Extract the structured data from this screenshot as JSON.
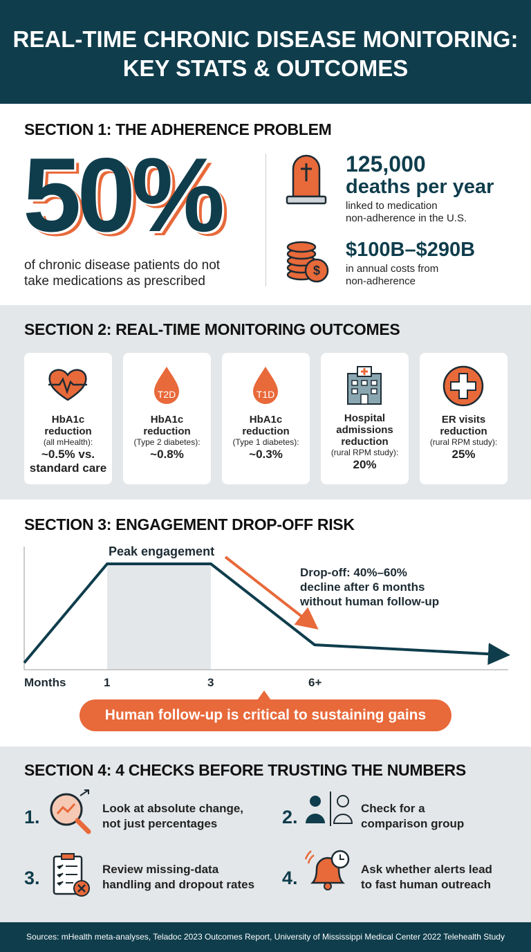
{
  "header": {
    "title_lines": [
      "REAL-TIME CHRONIC DISEASE MONITORING:",
      "KEY STATS & OUTCOMES"
    ]
  },
  "section1": {
    "heading": "SECTION 1: THE ADHERENCE PROBLEM",
    "big_stat": "50%",
    "big_stat_caption": [
      "of chronic disease patients do not",
      "take medications as prescribed"
    ],
    "stats": [
      {
        "value_lines": [
          "125,000",
          "deaths per year"
        ],
        "detail": [
          "linked to medication",
          "non-adherence in the U.S."
        ]
      },
      {
        "value_lines": [
          "$100B–$290B"
        ],
        "detail": [
          "in annual costs from",
          "non-adherence"
        ]
      }
    ]
  },
  "section2": {
    "heading": "SECTION 2: REAL-TIME MONITORING OUTCOMES",
    "cards": [
      {
        "title_lines": [
          "HbA1c",
          "reduction"
        ],
        "note": "(all mHealth):",
        "value_lines": [
          "~0.5% vs.",
          "standard care"
        ]
      },
      {
        "badge": "T2D",
        "title_lines": [
          "HbA1c",
          "reduction"
        ],
        "note": "(Type 2 diabetes):",
        "value_lines": [
          "~0.8%"
        ]
      },
      {
        "badge": "T1D",
        "title_lines": [
          "HbA1c",
          "reduction"
        ],
        "note": "(Type 1 diabetes):",
        "value_lines": [
          "~0.3%"
        ]
      },
      {
        "title_lines": [
          "Hospital",
          "admissions",
          "reduction"
        ],
        "note": "(rural RPM study):",
        "value_lines": [
          "20%"
        ]
      },
      {
        "title_lines": [
          "ER visits",
          "reduction"
        ],
        "note": "(rural RPM study):",
        "value_lines": [
          "25%"
        ]
      }
    ]
  },
  "section3": {
    "heading": "SECTION 3: ENGAGEMENT DROP-OFF RISK",
    "peak_label": "Peak engagement",
    "dropoff_lines": [
      "Drop-off: 40%–60%",
      "decline after 6 months",
      "without human follow-up"
    ],
    "x_axis_label": "Months",
    "x_ticks": [
      "1",
      "3",
      "6+"
    ],
    "callout": "Human follow-up is critical to sustaining gains"
  },
  "section4": {
    "heading": "SECTION 4: 4 CHECKS BEFORE TRUSTING THE NUMBERS",
    "checks": [
      {
        "number": "1.",
        "lines": [
          "Look at absolute change,",
          "not just percentages"
        ]
      },
      {
        "number": "2.",
        "lines": [
          "Check for a",
          "comparison group"
        ]
      },
      {
        "number": "3.",
        "lines": [
          "Review missing-data",
          "handling and dropout rates"
        ]
      },
      {
        "number": "4.",
        "lines": [
          "Ask whether alerts lead",
          "to fast human outreach"
        ]
      }
    ]
  },
  "footer": {
    "sources": "Sources: mHealth meta-analyses, Teladoc 2023 Outcomes Report, University of Mississippi Medical Center 2022 Telehealth Study"
  }
}
